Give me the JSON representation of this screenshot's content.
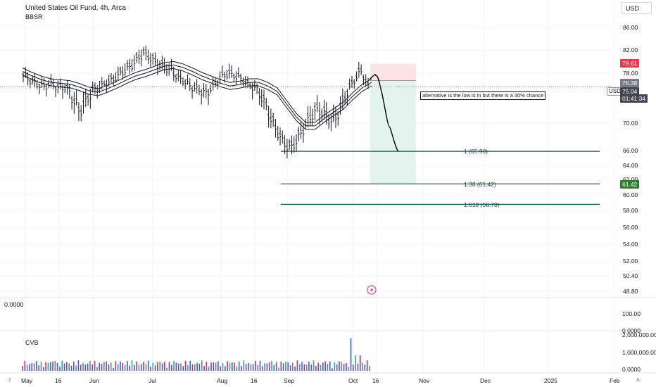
{
  "header": {
    "title": "United States Oil Fund, 4h, Arca",
    "subtitle": "BBSR",
    "currency_button": "USD"
  },
  "price_scale_ticks": [
    "86.00",
    "82.00",
    "78.00",
    "74.00",
    "70.00",
    "66.00",
    "64.00",
    "62.00",
    "60.00",
    "58.00",
    "56.00",
    "54.00",
    "52.00",
    "50.40",
    "48.80"
  ],
  "time_ticks": [
    "May",
    "16",
    "Jun",
    "Jul",
    "Aug",
    "16",
    "Sep",
    "Oct",
    "16",
    "Nov",
    "Dec",
    "2025",
    "Feb"
  ],
  "price_tags": {
    "stop": "79.61",
    "entry": "76.38",
    "last_symbol": "USD",
    "last_price": "75.04",
    "countdown": "01:41:34",
    "target": "61.42"
  },
  "annotation": "alternative is the low is in but there is a 30% chance",
  "fib_levels": [
    {
      "label": "1 (65.90)",
      "price": 65.9,
      "color": "#1b5e4e"
    },
    {
      "label": "1.38 (61.42)",
      "price": 61.42,
      "color": "#33691e"
    },
    {
      "label": "1.618 (58.78)",
      "price": 58.78,
      "color": "#00695c"
    }
  ],
  "middle_pane": {
    "left_value": "0.0000",
    "ticks": [
      "100.00",
      "0.0000"
    ]
  },
  "cvb_pane": {
    "label": "CVB",
    "ticks": [
      "2,000,000.00",
      "1,000,000.00",
      "0.0000"
    ]
  },
  "bottom_left_button": "Z",
  "bottom_right_button": "A",
  "colors": {
    "up": "#131722",
    "stop_zone": "#fde4e4",
    "target_zone": "#e3f4ef",
    "stop_tag": "#f23645",
    "entry_tag": "#787b86",
    "last_tag": "#434651",
    "target_tag": "#2e7d32",
    "volume_up": "#2962ff",
    "volume_down": "#e91e63",
    "volume_neutral": "#26a69a"
  },
  "chart_data": {
    "type": "candlestick",
    "symbol": "United States Oil Fund",
    "interval": "4h",
    "exchange": "Arca",
    "indicator": "BBSR",
    "y_range": [
      47.6,
      88.0
    ],
    "x_range": [
      "May",
      "Feb"
    ],
    "price_series": {
      "approx_closes": [
        77.5,
        76.5,
        75.6,
        75.2,
        75.8,
        74.8,
        75.0,
        73.2,
        71.5,
        73.0,
        74.5,
        75.2,
        76.0,
        77.0,
        78.2,
        79.0,
        80.2,
        81.5,
        80.8,
        79.6,
        79.2,
        78.6,
        77.0,
        76.2,
        75.0,
        74.5,
        73.8,
        75.2,
        77.0,
        78.0,
        77.5,
        76.8,
        75.4,
        74.8,
        73.2,
        71.0,
        69.0,
        67.2,
        66.4,
        67.8,
        69.6,
        71.2,
        71.8,
        71.0,
        70.2,
        71.8,
        74.0,
        76.5,
        78.5,
        75.04
      ],
      "channel_basis": [
        78.3,
        77.4,
        76.6,
        76.0,
        75.8,
        75.6,
        75.0,
        74.2,
        73.9,
        74.6,
        75.5,
        76.5,
        77.4,
        78.0,
        78.6,
        79.2,
        79.4,
        79.0,
        78.3,
        77.4,
        76.6,
        75.8,
        75.2,
        75.5,
        76.0,
        76.0,
        75.2,
        74.0,
        72.4,
        70.8,
        69.6,
        69.6,
        70.6,
        71.4,
        72.2,
        73.4,
        74.8,
        76.0
      ]
    },
    "trade_setup": {
      "stop": 79.61,
      "entry": 76.38,
      "target": 61.42,
      "projected_path": [
        76.6,
        77.5,
        74.0,
        69.5,
        65.9
      ]
    },
    "fibonacci": [
      {
        "ratio": "1",
        "price": 65.9
      },
      {
        "ratio": "1.38",
        "price": 61.42
      },
      {
        "ratio": "1.618",
        "price": 58.78
      }
    ],
    "volume_pane": {
      "label": "CVB",
      "y_ticks": [
        2000000,
        1000000,
        0
      ],
      "peak_volume": 1900000
    }
  }
}
